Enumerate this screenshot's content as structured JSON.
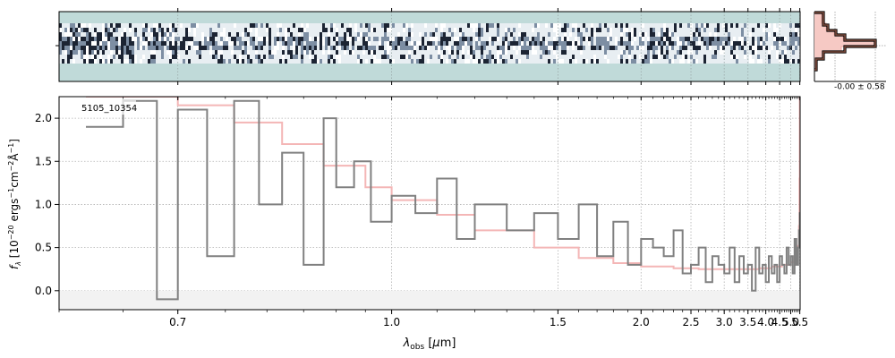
{
  "chart_data": {
    "type": "line",
    "annotation": "5105_10354",
    "xlabel": "λ_obs [μm]",
    "ylabel": "f_λ [10^-20 erg s^-1 cm^-2 Å^-1]",
    "xscale": "reciprocal (evenly spaced in 1/λ)",
    "xlim": [
      0.6,
      5.52
    ],
    "ylim": [
      -0.22,
      2.25
    ],
    "x_ticks": [
      {
        "value": 0.7,
        "label": "0.7"
      },
      {
        "value": 1.0,
        "label": "1.0"
      },
      {
        "value": 1.5,
        "label": "1.5"
      },
      {
        "value": 2.0,
        "label": "2.0"
      },
      {
        "value": 2.5,
        "label": "2.5"
      },
      {
        "value": 3.0,
        "label": "3.0"
      },
      {
        "value": 3.5,
        "label": "3.5"
      },
      {
        "value": 4.0,
        "label": "4.0"
      },
      {
        "value": 4.5,
        "label": "4.5"
      },
      {
        "value": 5.0,
        "label": "5.0"
      },
      {
        "value": 5.5,
        "label": "5.5"
      }
    ],
    "y_ticks": [
      {
        "value": 0.0,
        "label": "0.0"
      },
      {
        "value": 0.5,
        "label": "0.5"
      },
      {
        "value": 1.0,
        "label": "1.0"
      },
      {
        "value": 1.5,
        "label": "1.5"
      },
      {
        "value": 2.0,
        "label": "2.0"
      }
    ],
    "grid": true,
    "series": [
      {
        "kind": "flux",
        "color": "#808080",
        "x": [
          0.62,
          0.65,
          0.68,
          0.7,
          0.73,
          0.76,
          0.79,
          0.82,
          0.85,
          0.88,
          0.9,
          0.93,
          0.96,
          1.0,
          1.05,
          1.1,
          1.15,
          1.2,
          1.3,
          1.4,
          1.5,
          1.6,
          1.7,
          1.8,
          1.9,
          2.0,
          2.1,
          2.2,
          2.3,
          2.4,
          2.5,
          2.6,
          2.7,
          2.8,
          2.9,
          3.0,
          3.1,
          3.2,
          3.3,
          3.4,
          3.5,
          3.6,
          3.7,
          3.8,
          3.9,
          4.0,
          4.1,
          4.2,
          4.3,
          4.4,
          4.5,
          4.6,
          4.7,
          4.8,
          4.9,
          5.0,
          5.1,
          5.2,
          5.3,
          5.4,
          5.45,
          5.5
        ],
        "y": [
          1.9,
          2.2,
          -0.1,
          2.1,
          0.4,
          2.2,
          1.0,
          1.6,
          0.3,
          2.0,
          1.2,
          1.5,
          0.8,
          1.1,
          0.9,
          1.3,
          0.6,
          1.0,
          0.7,
          0.9,
          0.6,
          1.0,
          0.4,
          0.8,
          0.3,
          0.6,
          0.5,
          0.4,
          0.7,
          0.2,
          0.3,
          0.5,
          0.1,
          0.4,
          0.3,
          0.2,
          0.5,
          0.1,
          0.4,
          0.2,
          0.3,
          0.0,
          0.5,
          0.2,
          0.3,
          0.1,
          0.4,
          0.2,
          0.3,
          0.1,
          0.4,
          0.3,
          0.2,
          0.5,
          0.3,
          0.4,
          0.2,
          0.6,
          0.3,
          0.5,
          0.7,
          0.9
        ]
      },
      {
        "kind": "model",
        "color": "#f4b6b6",
        "x": [
          0.62,
          0.7,
          0.76,
          0.82,
          0.88,
          0.95,
          1.0,
          1.1,
          1.2,
          1.4,
          1.6,
          1.8,
          2.0,
          2.3,
          2.6,
          3.0,
          3.4,
          3.8,
          4.2,
          4.6,
          5.0,
          5.2,
          5.35,
          5.45,
          5.48,
          5.5
        ],
        "y": [
          2.25,
          2.15,
          1.95,
          1.7,
          1.45,
          1.2,
          1.05,
          0.88,
          0.7,
          0.5,
          0.38,
          0.32,
          0.28,
          0.26,
          0.25,
          0.25,
          0.25,
          0.26,
          0.28,
          0.3,
          0.33,
          0.4,
          0.52,
          0.75,
          1.3,
          2.25
        ]
      }
    ],
    "spectrum_2d": {
      "colormap": "gray-blue",
      "background": "#c0dad9"
    },
    "inset": {
      "label": "-0.00 ± 0.58"
    }
  }
}
